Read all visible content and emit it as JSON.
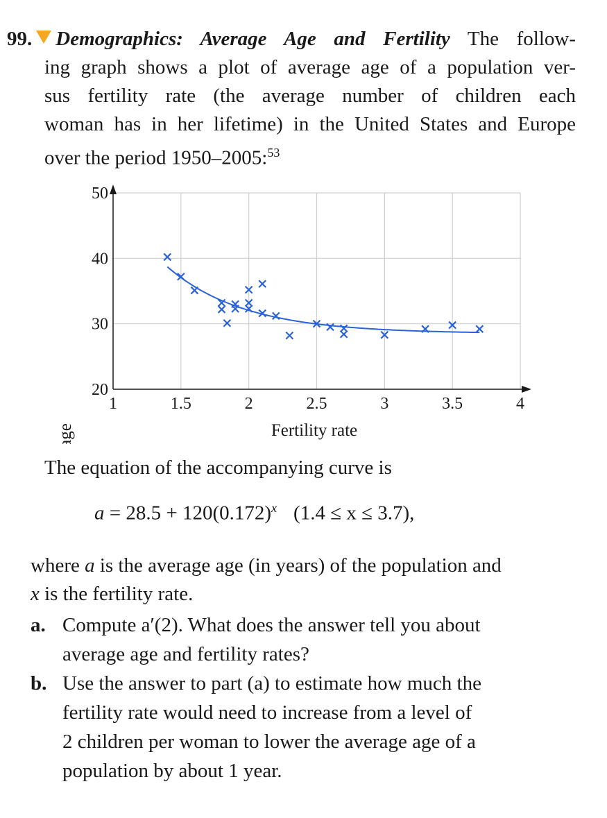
{
  "problem": {
    "number": "99.",
    "title": "Demographics: Average Age and Fertility",
    "intro_lines": [
      "The follow-",
      "ing graph shows a plot of average age of a population ver-",
      "sus fertility rate (the average number of children each",
      "woman has in her lifetime) in the United States and Europe",
      "over the period 1950–2005:"
    ],
    "footnote": "53",
    "curve_intro": "The equation of the accompanying curve is",
    "equation": {
      "lhs": "a",
      "rhs_a": " = 28.5 + 120(0.172)",
      "exponent": "x",
      "domain": "(1.4 ≤ x ≤ 3.7),"
    },
    "where_lines": [
      [
        "where ",
        "a",
        " is the average age (in years) of the population and"
      ],
      [
        "",
        "x",
        " is the fertility rate."
      ]
    ],
    "parts": [
      {
        "label": "a.",
        "lines": [
          "Compute a′(2). What does the answer tell you about",
          "average age and fertility rates?"
        ]
      },
      {
        "label": "b.",
        "lines": [
          "Use the answer to part (a) to estimate how much the",
          "fertility rate would need to increase from a level of",
          "2 children per woman to lower the average age of a",
          "population by about 1 year."
        ]
      }
    ]
  },
  "chart_data": {
    "type": "scatter",
    "xlabel": "Fertility rate",
    "ylabel": "Average age",
    "xlim": [
      1,
      4
    ],
    "ylim": [
      20,
      50
    ],
    "x_ticks": [
      "1",
      "1.5",
      "2",
      "2.5",
      "3",
      "3.5",
      "4"
    ],
    "y_ticks": [
      "20",
      "30",
      "40",
      "50"
    ],
    "grid": true,
    "marker": "x",
    "color": "#2a62d8",
    "points": [
      [
        1.4,
        40.2
      ],
      [
        1.5,
        37.2
      ],
      [
        1.6,
        35.1
      ],
      [
        1.8,
        33.2
      ],
      [
        1.8,
        32.2
      ],
      [
        1.84,
        30.1
      ],
      [
        1.9,
        33.0
      ],
      [
        1.9,
        32.3
      ],
      [
        2.0,
        35.2
      ],
      [
        2.0,
        33.2
      ],
      [
        2.0,
        32.3
      ],
      [
        2.1,
        36.1
      ],
      [
        2.1,
        31.6
      ],
      [
        2.2,
        31.2
      ],
      [
        2.3,
        28.2
      ],
      [
        2.5,
        30.0
      ],
      [
        2.6,
        29.5
      ],
      [
        2.7,
        29.3
      ],
      [
        2.7,
        28.4
      ],
      [
        3.0,
        28.3
      ],
      [
        3.3,
        29.2
      ],
      [
        3.5,
        29.8
      ],
      [
        3.7,
        29.2
      ]
    ],
    "curve": {
      "a": 28.5,
      "b": 120,
      "base": 0.172,
      "x_range": [
        1.4,
        3.7
      ]
    }
  }
}
